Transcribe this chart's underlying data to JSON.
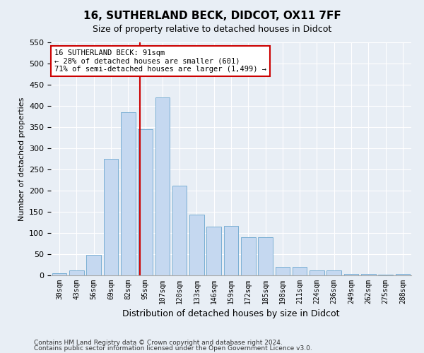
{
  "title": "16, SUTHERLAND BECK, DIDCOT, OX11 7FF",
  "subtitle": "Size of property relative to detached houses in Didcot",
  "xlabel": "Distribution of detached houses by size in Didcot",
  "ylabel": "Number of detached properties",
  "footnote1": "Contains HM Land Registry data © Crown copyright and database right 2024.",
  "footnote2": "Contains public sector information licensed under the Open Government Licence v3.0.",
  "categories": [
    "30sqm",
    "43sqm",
    "56sqm",
    "69sqm",
    "82sqm",
    "95sqm",
    "107sqm",
    "120sqm",
    "133sqm",
    "146sqm",
    "159sqm",
    "172sqm",
    "185sqm",
    "198sqm",
    "211sqm",
    "224sqm",
    "236sqm",
    "249sqm",
    "262sqm",
    "275sqm",
    "288sqm"
  ],
  "values": [
    5,
    12,
    48,
    275,
    385,
    345,
    420,
    212,
    143,
    115,
    116,
    90,
    90,
    20,
    20,
    12,
    12,
    4,
    3,
    2,
    3
  ],
  "bar_color": "#c5d8f0",
  "bar_edge_color": "#7bafd4",
  "vline_x_index": 4.69,
  "annotation_text": "16 SUTHERLAND BECK: 91sqm\n← 28% of detached houses are smaller (601)\n71% of semi-detached houses are larger (1,499) →",
  "annotation_box_color": "#ffffff",
  "annotation_box_edge": "#cc0000",
  "vline_color": "#cc0000",
  "ylim": [
    0,
    550
  ],
  "yticks": [
    0,
    50,
    100,
    150,
    200,
    250,
    300,
    350,
    400,
    450,
    500,
    550
  ],
  "background_color": "#e8eef5",
  "plot_bg_color": "#e8eef5",
  "title_fontsize": 11,
  "subtitle_fontsize": 9,
  "ylabel_fontsize": 8,
  "xlabel_fontsize": 9,
  "footnote_fontsize": 6.5
}
